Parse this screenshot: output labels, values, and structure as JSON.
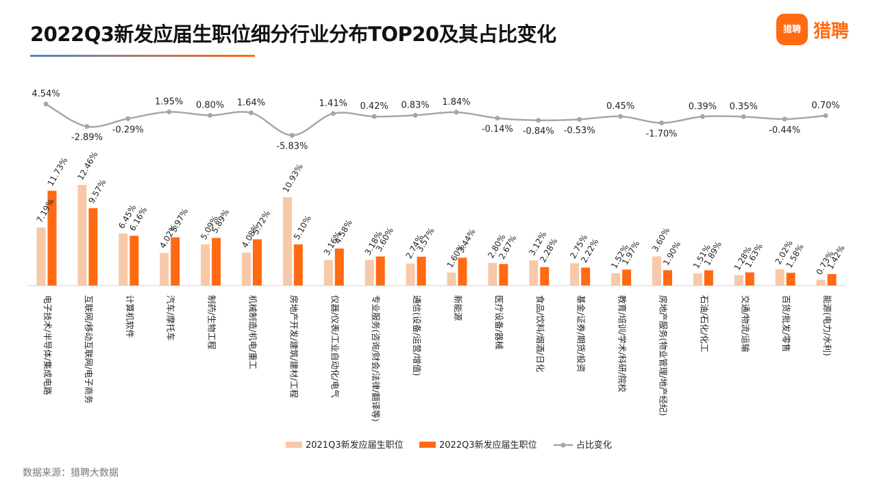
{
  "header": {
    "title": "2022Q3新发应届生职位细分行业分布TOP20及其占比变化",
    "brand": "猎聘",
    "brand_badge": "猎聘"
  },
  "footer": {
    "source": "数据来源：猎聘大数据"
  },
  "colors": {
    "bar2021": "#f7c9a9",
    "bar2022": "#ff6a13",
    "line": "#a6a6a6",
    "text": "#222222"
  },
  "chart_data": {
    "type": "bar",
    "title": "2022Q3新发应届生职位细分行业分布TOP20及其占比变化",
    "categories": [
      "电子技术/半导体/集成电路",
      "互联网/移动互联网/电子商务",
      "计算机软件",
      "汽车/摩托车",
      "制药/生物工程",
      "机械制造/机电/重工",
      "房地产开发/建筑/建材/工程",
      "仪器/仪表/工业自动化/电气",
      "专业服务(咨询/财会/法律/翻译等)",
      "通信(设备/运营/增值)",
      "新能源",
      "医疗设备/器械",
      "食品/饮料/烟酒/日化",
      "基金/证券/期货/投资",
      "教育/培训/学术/科研/院校",
      "房地产服务(物业管理/地产经纪)",
      "石油/石化/化工",
      "交通/物流/运输",
      "百货/批发/零售",
      "能源(电力/水利)"
    ],
    "series": [
      {
        "name": "2021Q3新发应届生职位",
        "values": [
          7.19,
          12.46,
          6.45,
          4.02,
          5.09,
          4.08,
          10.93,
          3.16,
          3.18,
          2.74,
          1.6,
          2.8,
          3.12,
          2.75,
          1.52,
          3.6,
          1.51,
          1.28,
          2.02,
          0.73
        ],
        "labels": [
          "7.19%",
          "12.46%",
          "6.45%",
          "4.02%",
          "5.09%",
          "4.08%",
          "10.93%",
          "3.16%",
          "3.18%",
          "2.74%",
          "1.60%",
          "2.80%",
          "3.12%",
          "2.75%",
          "1.52%",
          "3.60%",
          "1.51%",
          "1.28%",
          "2.02%",
          "0.73%"
        ]
      },
      {
        "name": "2022Q3新发应届生职位",
        "values": [
          11.73,
          9.57,
          6.16,
          5.97,
          5.89,
          5.72,
          5.1,
          4.58,
          3.6,
          3.57,
          3.44,
          2.67,
          2.28,
          2.22,
          1.97,
          1.9,
          1.89,
          1.63,
          1.58,
          1.42
        ],
        "labels": [
          "11.73%",
          "9.57%",
          "6.16%",
          "5.97%",
          "5.89%",
          "5.72%",
          "5.10%",
          "4.58%",
          "3.60%",
          "3.57%",
          "3.44%",
          "2.67%",
          "2.28%",
          "2.22%",
          "1.97%",
          "1.90%",
          "1.89%",
          "1.63%",
          "1.58%",
          "1.42%"
        ]
      }
    ],
    "change": {
      "name": "占比变化",
      "values": [
        4.54,
        -2.89,
        -0.29,
        1.95,
        0.8,
        1.64,
        -5.83,
        1.41,
        0.42,
        0.83,
        1.84,
        -0.14,
        -0.84,
        -0.53,
        0.45,
        -1.7,
        0.39,
        0.35,
        -0.44,
        0.7
      ],
      "labels": [
        "4.54%",
        "-2.89%",
        "-0.29%",
        "1.95%",
        "0.80%",
        "1.64%",
        "-5.83%",
        "1.41%",
        "0.42%",
        "0.83%",
        "1.84%",
        "-0.14%",
        "-0.84%",
        "-0.53%",
        "0.45%",
        "-1.70%",
        "0.39%",
        "0.35%",
        "-0.44%",
        "0.70%"
      ]
    },
    "legend": [
      "2021Q3新发应届生职位",
      "2022Q3新发应届生职位",
      "占比变化"
    ],
    "legend_position": "bottom",
    "ylim": [
      0,
      13
    ],
    "unit": "%"
  }
}
